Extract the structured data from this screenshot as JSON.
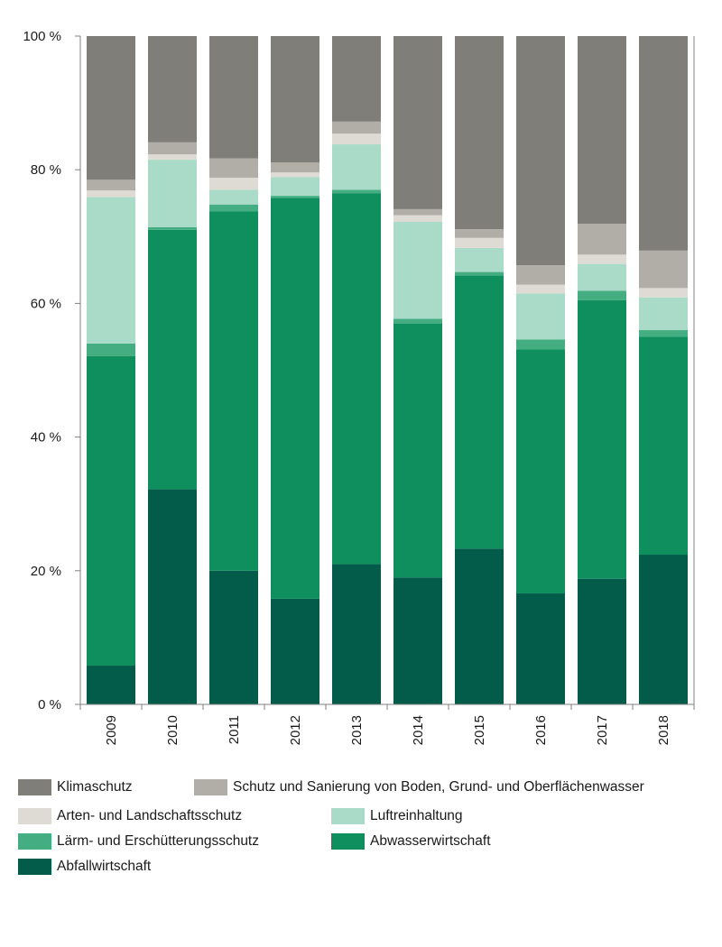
{
  "chart_data": {
    "type": "bar",
    "stacked": true,
    "categories": [
      "2009",
      "2010",
      "2011",
      "2012",
      "2013",
      "2014",
      "2015",
      "2016",
      "2017",
      "2018"
    ],
    "ylim": [
      0,
      100
    ],
    "yticks": [
      0,
      20,
      40,
      60,
      80,
      100
    ],
    "ytick_labels": [
      "0 %",
      "20 %",
      "40 %",
      "60 %",
      "80 %",
      "100 %"
    ],
    "legend_position": "bottom",
    "series": [
      {
        "name": "Abfallwirtschaft",
        "color": "#035c49",
        "values": [
          5.8,
          32.2,
          20.0,
          15.8,
          21.0,
          19.0,
          23.3,
          16.6,
          18.8,
          22.4
        ]
      },
      {
        "name": "Abwasserwirtschaft",
        "color": "#0f8f5e",
        "values": [
          46.3,
          38.8,
          53.8,
          60.0,
          55.5,
          38.0,
          40.9,
          36.5,
          41.7,
          32.6
        ]
      },
      {
        "name": "Lärm- und Erschütterungsschutz",
        "color": "#44ad82",
        "values": [
          1.9,
          0.4,
          1.0,
          0.3,
          0.5,
          0.7,
          0.5,
          1.5,
          1.4,
          1.0
        ]
      },
      {
        "name": "Luftreinhaltung",
        "color": "#a9dbc8",
        "values": [
          21.9,
          10.1,
          2.2,
          2.8,
          6.8,
          14.5,
          3.6,
          6.9,
          4.0,
          4.9
        ]
      },
      {
        "name": "Arten- und Landschaftsschutz",
        "color": "#dedbd4",
        "values": [
          1.0,
          0.8,
          1.8,
          0.7,
          1.6,
          1.0,
          1.5,
          1.3,
          1.4,
          1.4
        ]
      },
      {
        "name": "Schutz und Sanierung von Boden, Grund- und Oberflächenwasser",
        "color": "#b0aea6",
        "values": [
          1.6,
          1.8,
          2.9,
          1.5,
          1.8,
          0.9,
          1.3,
          2.9,
          4.6,
          5.6
        ]
      },
      {
        "name": "Klimaschutz",
        "color": "#7f7e79",
        "values": [
          21.5,
          15.9,
          18.3,
          18.9,
          12.8,
          25.9,
          28.9,
          34.3,
          28.1,
          32.1
        ]
      }
    ]
  },
  "legend": {
    "items": [
      {
        "label": "Klimaschutz",
        "color": "#7f7e79"
      },
      {
        "label": "Schutz und Sanierung von Boden, Grund- und Oberflächenwasser",
        "color": "#b0aea6"
      },
      {
        "label": "Arten- und Landschaftsschutz",
        "color": "#dedbd4"
      },
      {
        "label": "Luftreinhaltung",
        "color": "#a9dbc8"
      },
      {
        "label": "Lärm- und Erschütterungsschutz",
        "color": "#44ad82"
      },
      {
        "label": "Abwasserwirtschaft",
        "color": "#0f8f5e"
      },
      {
        "label": "Abfallwirtschaft",
        "color": "#035c49"
      }
    ]
  }
}
